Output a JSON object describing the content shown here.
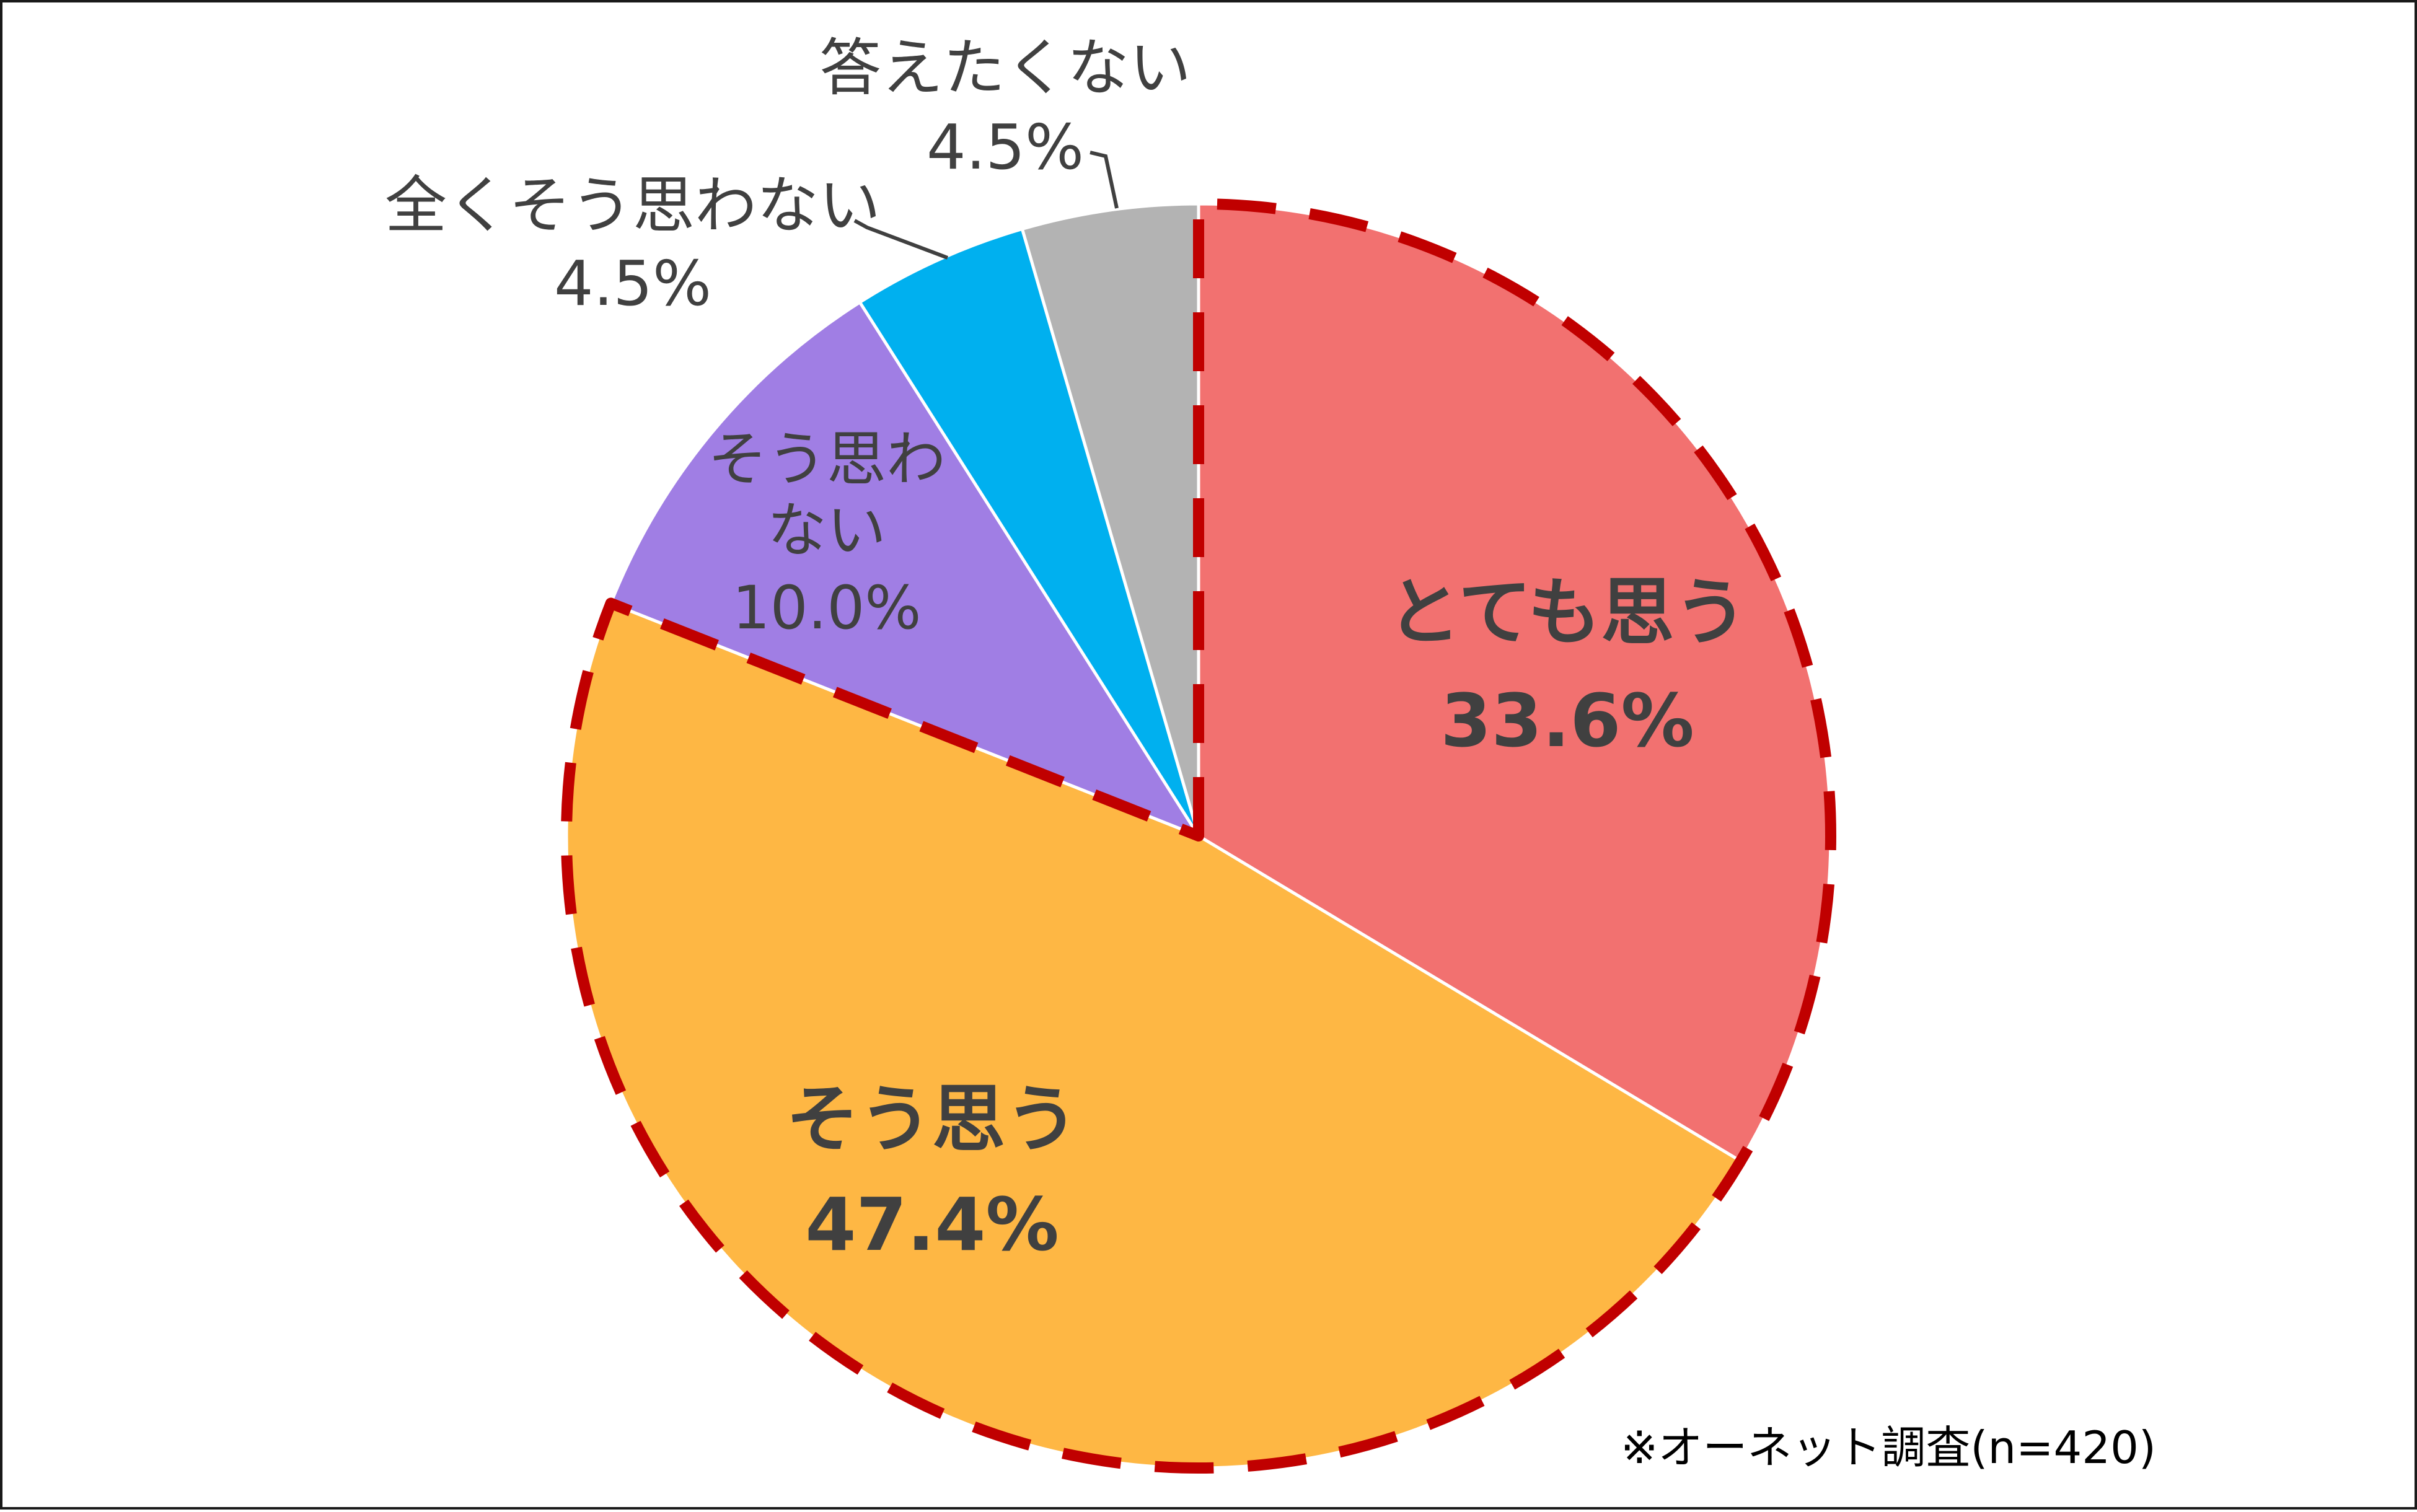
{
  "chart_data": {
    "type": "pie",
    "start_angle_deg": 90,
    "direction": "clockwise",
    "slices": [
      {
        "label": "とても思う",
        "value": 33.6,
        "display": "33.6%",
        "color": "#f27170",
        "highlighted": true
      },
      {
        "label": "そう思う",
        "value": 47.4,
        "display": "47.4%",
        "color": "#feb744",
        "highlighted": true
      },
      {
        "label": "そう思わない",
        "label_lines": [
          "そう思わ",
          "ない"
        ],
        "value": 10.0,
        "display": "10.0%",
        "color": "#a07ee4",
        "highlighted": false
      },
      {
        "label": "全くそう思わない",
        "value": 4.5,
        "display": "4.5%",
        "color": "#00b0ef",
        "highlighted": false
      },
      {
        "label": "答えたくない",
        "value": 4.5,
        "display": "4.5%",
        "color": "#b3b3b3",
        "highlighted": false
      }
    ],
    "highlight_outline_color": "#c00000",
    "note": "※オーネット調査(n=420)"
  }
}
